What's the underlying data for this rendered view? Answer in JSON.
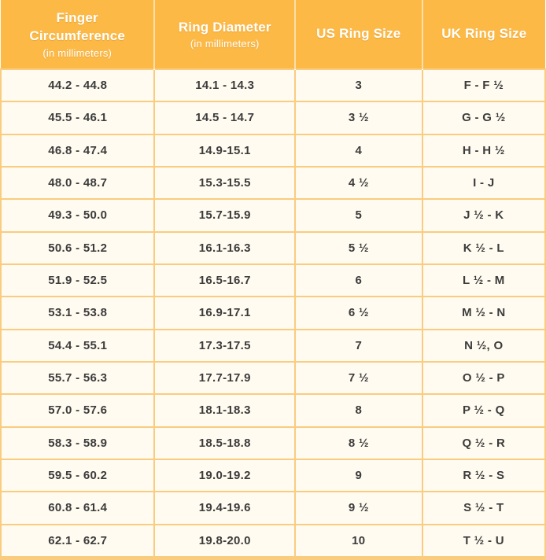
{
  "colors": {
    "header_bg": "#FDB946",
    "header_text": "#FFFFFF",
    "row_bg": "#FFFBF0",
    "border": "#F9CC80",
    "body_text": "#3C3C3C"
  },
  "chart_data": {
    "type": "table",
    "columns": [
      {
        "id": "finger-circumference",
        "title": "Finger Circumference",
        "subtitle": "(in millimeters)"
      },
      {
        "id": "ring-diameter",
        "title": "Ring Diameter",
        "subtitle": "(in millimeters)"
      },
      {
        "id": "us-ring-size",
        "title": "US Ring Size",
        "subtitle": ""
      },
      {
        "id": "uk-ring-size",
        "title": "UK Ring Size",
        "subtitle": ""
      }
    ],
    "rows": [
      [
        "44.2 - 44.8",
        "14.1 - 14.3",
        "3",
        "F - F ½"
      ],
      [
        "45.5 - 46.1",
        "14.5 - 14.7",
        "3 ½",
        "G - G ½"
      ],
      [
        "46.8 - 47.4",
        "14.9-15.1",
        "4",
        "H - H ½"
      ],
      [
        "48.0 - 48.7",
        "15.3-15.5",
        "4 ½",
        "I - J"
      ],
      [
        "49.3 - 50.0",
        "15.7-15.9",
        "5",
        "J ½ - K"
      ],
      [
        "50.6 - 51.2",
        "16.1-16.3",
        "5 ½",
        "K ½ - L"
      ],
      [
        "51.9 - 52.5",
        "16.5-16.7",
        "6",
        "L ½ - M"
      ],
      [
        "53.1 - 53.8",
        "16.9-17.1",
        "6 ½",
        "M ½ - N"
      ],
      [
        "54.4 - 55.1",
        "17.3-17.5",
        "7",
        "N ½, O"
      ],
      [
        "55.7 - 56.3",
        "17.7-17.9",
        "7 ½",
        "O ½ - P"
      ],
      [
        "57.0 - 57.6",
        "18.1-18.3",
        "8",
        "P ½ - Q"
      ],
      [
        "58.3 - 58.9",
        "18.5-18.8",
        "8 ½",
        "Q ½ - R"
      ],
      [
        "59.5 - 60.2",
        "19.0-19.2",
        "9",
        "R ½ - S"
      ],
      [
        "60.8 - 61.4",
        "19.4-19.6",
        "9 ½",
        "S ½ - T"
      ],
      [
        "62.1 - 62.7",
        "19.8-20.0",
        "10",
        "T ½ - U"
      ]
    ]
  }
}
